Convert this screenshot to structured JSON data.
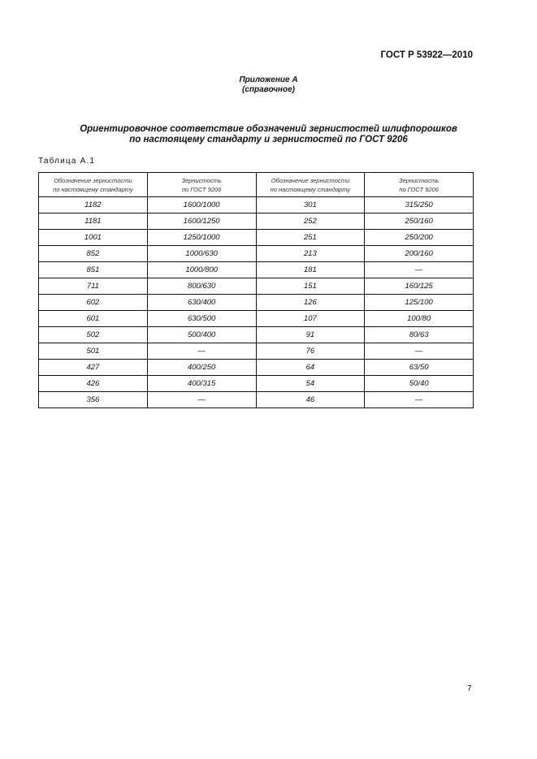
{
  "header": {
    "doc_code": "ГОСТ Р 53922—2010"
  },
  "annex": {
    "line1": "Приложение А",
    "line2": "(справочное)"
  },
  "title": {
    "line1": "Ориентировочное соответствие обозначений зернистостей шлифпорошков",
    "line2": "по настоящему стандарту и зернистостей по ГОСТ 9206"
  },
  "table": {
    "caption": "Таблица А.1",
    "headers": [
      [
        "Обозначение зернистости",
        "по настоящему стандарту"
      ],
      [
        "Зернистость",
        "по ГОСТ 9206"
      ],
      [
        "Обозначение зернистости",
        "по настоящему стандарту"
      ],
      [
        "Зернистость",
        "по ГОСТ 9206"
      ]
    ],
    "rows": [
      [
        "1182",
        "1600/1000",
        "301",
        "315/250"
      ],
      [
        "1181",
        "1600/1250",
        "252",
        "250/160"
      ],
      [
        "1001",
        "1250/1000",
        "251",
        "250/200"
      ],
      [
        "852",
        "1000/630",
        "213",
        "200/160"
      ],
      [
        "851",
        "1000/800",
        "181",
        "—"
      ],
      [
        "711",
        "800/630",
        "151",
        "160/125"
      ],
      [
        "602",
        "630/400",
        "126",
        "125/100"
      ],
      [
        "601",
        "630/500",
        "107",
        "100/80"
      ],
      [
        "502",
        "500/400",
        "91",
        "80/63"
      ],
      [
        "501",
        "—",
        "76",
        "—"
      ],
      [
        "427",
        "400/250",
        "64",
        "63/50"
      ],
      [
        "426",
        "400/315",
        "54",
        "50/40"
      ],
      [
        "356",
        "—",
        "46",
        "—"
      ]
    ]
  },
  "footer": {
    "page_number": "7"
  }
}
